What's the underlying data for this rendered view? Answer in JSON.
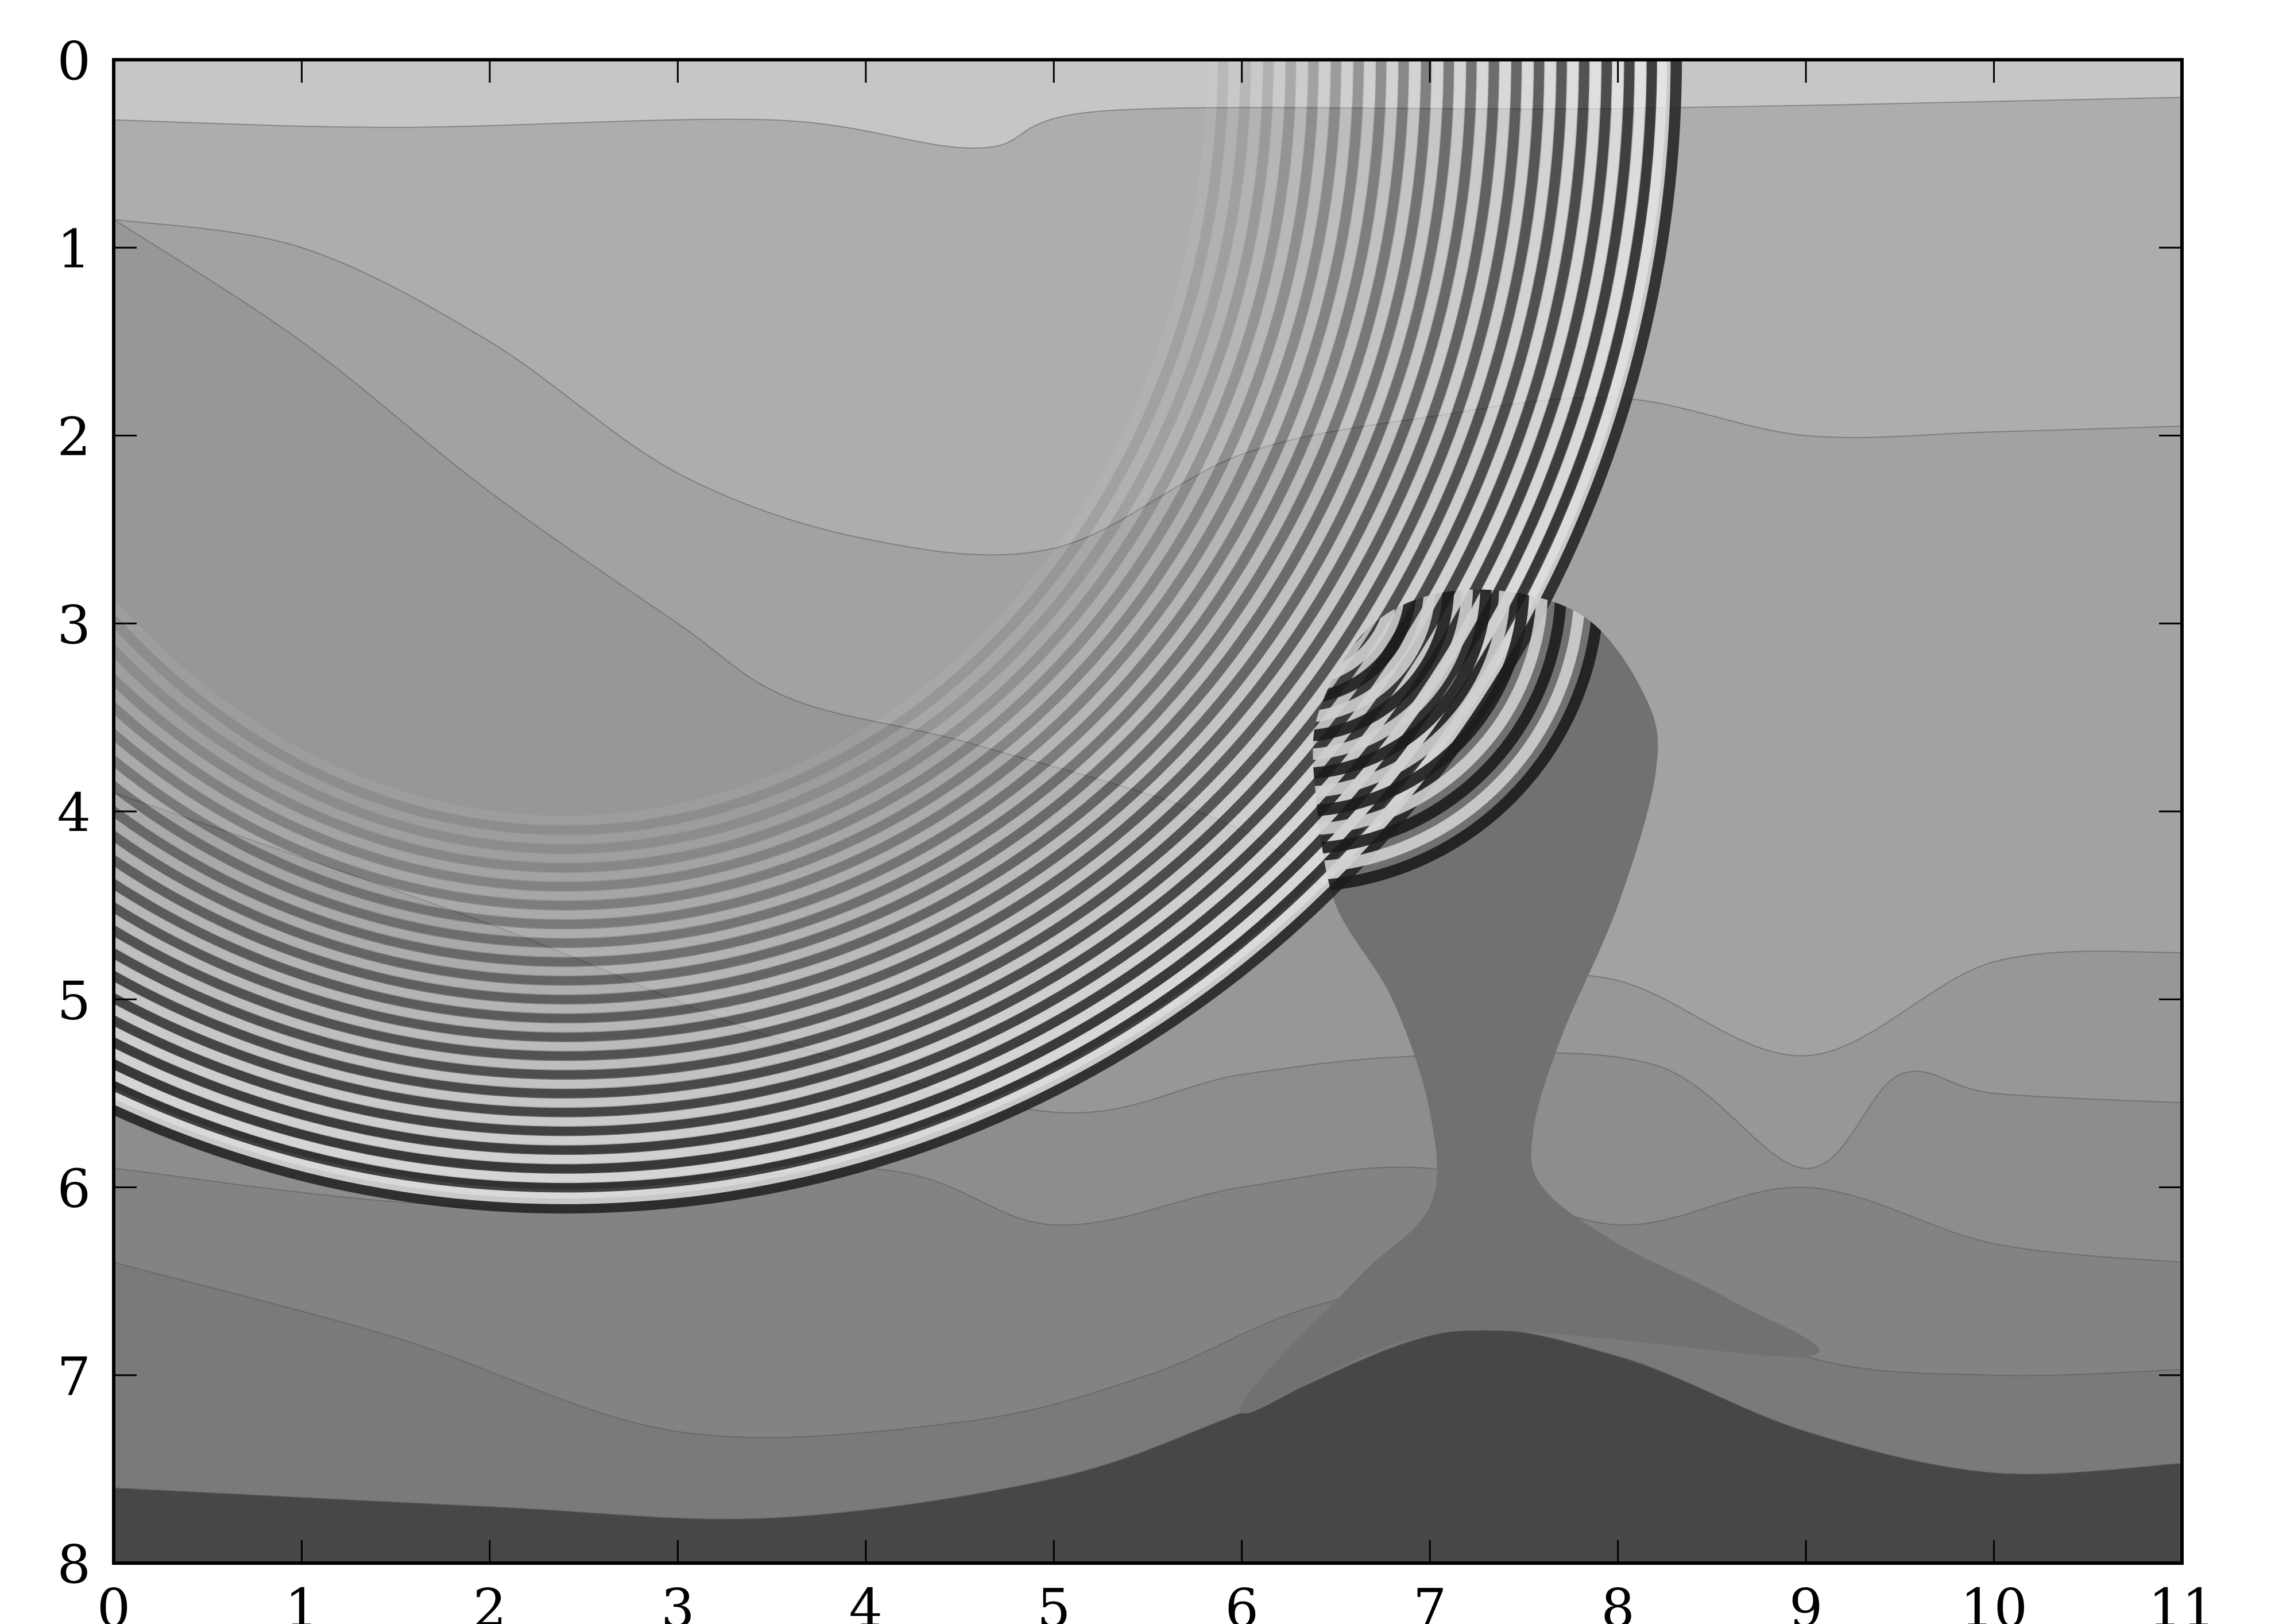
{
  "chart_data": {
    "type": "heatmap",
    "title": "",
    "xlabel": "",
    "ylabel": "",
    "xlim": [
      0,
      11
    ],
    "ylim": [
      8,
      0
    ],
    "y_axis_inverted": true,
    "grid": false,
    "colormap": "grayscale",
    "x_ticks": [
      "0",
      "1",
      "2",
      "3",
      "4",
      "5",
      "6",
      "7",
      "8",
      "9",
      "10",
      "11"
    ],
    "y_ticks": [
      "0",
      "1",
      "2",
      "3",
      "4",
      "5",
      "6",
      "7",
      "8"
    ],
    "layers": [
      {
        "color": "#c6c6c6",
        "boundary": [
          [
            0,
            0
          ],
          [
            11,
            0
          ]
        ]
      },
      {
        "color": "#adadad",
        "boundary": [
          [
            0,
            0.32
          ],
          [
            1.5,
            0.36
          ],
          [
            3.5,
            0.32
          ],
          [
            4.6,
            0.47
          ],
          [
            5.3,
            0.27
          ],
          [
            8,
            0.26
          ],
          [
            11,
            0.2
          ]
        ]
      },
      {
        "color": "#a2a2a2",
        "boundary": [
          [
            0,
            0.85
          ],
          [
            1,
            1.0
          ],
          [
            2,
            1.5
          ],
          [
            3,
            2.2
          ],
          [
            4,
            2.55
          ],
          [
            5,
            2.6
          ],
          [
            6,
            2.1
          ],
          [
            7,
            1.9
          ],
          [
            8,
            1.8
          ],
          [
            9,
            2.0
          ],
          [
            10,
            1.98
          ],
          [
            11,
            1.95
          ]
        ]
      },
      {
        "color": "#979797",
        "boundary": [
          [
            0,
            0.85
          ],
          [
            1,
            1.5
          ],
          [
            2,
            2.3
          ],
          [
            3,
            3.0
          ],
          [
            3.6,
            3.4
          ],
          [
            4.6,
            3.65
          ],
          [
            6,
            4.1
          ],
          [
            7,
            4.8
          ],
          [
            8,
            4.9
          ],
          [
            9,
            5.3
          ],
          [
            10,
            4.8
          ],
          [
            11,
            4.75
          ]
        ]
      },
      {
        "color": "#8d8d8d",
        "boundary": [
          [
            0,
            3.9
          ],
          [
            2,
            4.6
          ],
          [
            3.5,
            5.2
          ],
          [
            5,
            5.6
          ],
          [
            6,
            5.4
          ],
          [
            7,
            5.3
          ],
          [
            8.2,
            5.35
          ],
          [
            9,
            5.9
          ],
          [
            9.5,
            5.4
          ],
          [
            10,
            5.5
          ],
          [
            11,
            5.55
          ]
        ]
      },
      {
        "color": "#838383",
        "boundary": [
          [
            0,
            5.9
          ],
          [
            2,
            6.1
          ],
          [
            4,
            5.9
          ],
          [
            5,
            6.2
          ],
          [
            6,
            6.0
          ],
          [
            7,
            5.9
          ],
          [
            8,
            6.2
          ],
          [
            9,
            6.0
          ],
          [
            10,
            6.3
          ],
          [
            11,
            6.4
          ]
        ]
      },
      {
        "color": "#7a7a7a",
        "boundary": [
          [
            0,
            6.4
          ],
          [
            1.5,
            6.8
          ],
          [
            3,
            7.3
          ],
          [
            4.5,
            7.25
          ],
          [
            5.5,
            7.0
          ],
          [
            6.5,
            6.6
          ],
          [
            8,
            6.4
          ],
          [
            9,
            6.9
          ],
          [
            10,
            7.0
          ],
          [
            11,
            6.97
          ]
        ]
      },
      {
        "color": "#474747",
        "boundary": [
          [
            0,
            7.6
          ],
          [
            2,
            7.7
          ],
          [
            3.5,
            7.76
          ],
          [
            5,
            7.55
          ],
          [
            6,
            7.2
          ],
          [
            7.1,
            6.77
          ],
          [
            8,
            6.9
          ],
          [
            9,
            7.3
          ],
          [
            10,
            7.52
          ],
          [
            11,
            7.47
          ]
        ]
      }
    ],
    "salt_body": {
      "color": "#717171"
    }
  }
}
